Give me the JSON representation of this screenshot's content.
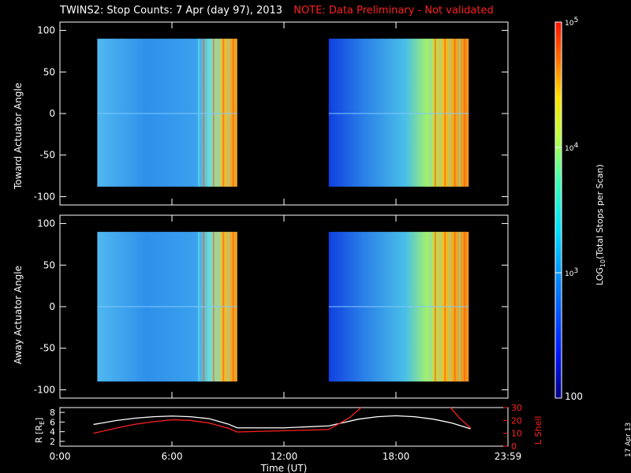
{
  "title": {
    "text": "TWINS2: Stop Counts:  7 Apr (day  97), 2013",
    "note": "NOTE: Data Preliminary - Not validated"
  },
  "stamp": "17 Apr 13",
  "colors": {
    "note": "#ff2020",
    "background": "#000000",
    "axes": "#ffffff",
    "lshell": "#ff2020",
    "radius": "#ffffff"
  },
  "chart_data": [
    {
      "type": "heatmap",
      "panel": "toward",
      "ylabel": "Toward Actuator Angle",
      "ylim": [
        -110,
        110
      ],
      "yticks": [
        100,
        50,
        0,
        -50,
        -100
      ],
      "xlim": [
        0,
        24
      ],
      "segments": [
        {
          "x": [
            2.0,
            9.5
          ],
          "y": [
            -88,
            90
          ]
        },
        {
          "x": [
            14.4,
            21.9
          ],
          "y": [
            -88,
            90
          ]
        }
      ]
    },
    {
      "type": "heatmap",
      "panel": "away",
      "ylabel": "Away Actuator Angle",
      "ylim": [
        -110,
        110
      ],
      "yticks": [
        100,
        50,
        0,
        -50,
        -100
      ],
      "xlim": [
        0,
        24
      ],
      "segments": [
        {
          "x": [
            2.0,
            9.5
          ],
          "y": [
            -90,
            90
          ]
        },
        {
          "x": [
            14.4,
            21.9
          ],
          "y": [
            -90,
            90
          ]
        }
      ]
    },
    {
      "type": "line",
      "panel": "orbit",
      "ylabel_left": "R [R",
      "ylabel_left_sub": "E",
      "ylabel_right": "L Shell",
      "ylim_left": [
        1,
        9
      ],
      "yticks_left": [
        2,
        4,
        6,
        8
      ],
      "ylim_right": [
        0,
        30
      ],
      "yticks_right": [
        0,
        10,
        20,
        30
      ],
      "xlabel": "Time (UT)",
      "xticks": [
        "0:00",
        "6:00",
        "12:00",
        "18:00",
        "23:59"
      ],
      "series": [
        {
          "axis": "left",
          "color": "#ffffff",
          "x": [
            1.8,
            3,
            4,
            5,
            6,
            7,
            8,
            9,
            9.5,
            12,
            14.4,
            16,
            17,
            18,
            19,
            20,
            21,
            22
          ],
          "y": [
            5.5,
            6.3,
            6.8,
            7.1,
            7.25,
            7.1,
            6.7,
            5.6,
            4.8,
            4.8,
            5.2,
            6.6,
            7.1,
            7.3,
            7.1,
            6.6,
            5.8,
            4.6
          ]
        },
        {
          "axis": "right",
          "color": "#ff2020",
          "x": [
            1.8,
            3,
            4,
            5,
            6,
            7,
            8,
            9,
            9.5,
            12,
            14.4,
            15.5,
            16.3,
            20.8,
            21.4,
            22
          ],
          "y": [
            10,
            14,
            17,
            19,
            20.5,
            20,
            18,
            14,
            11,
            12,
            13,
            22,
            32,
            32,
            22,
            14
          ]
        }
      ]
    },
    {
      "type": "colorbar",
      "label": "LOG",
      "label_sub": "10",
      "label_rest": "(Total Stops per Scan)",
      "range": [
        100,
        100000
      ],
      "ticks": [
        {
          "base": "10",
          "exp": "5",
          "value": 100000
        },
        {
          "base": "10",
          "exp": "4",
          "value": 10000
        },
        {
          "base": "10",
          "exp": "3",
          "value": 1000
        }
      ],
      "bottom_label": "100"
    }
  ]
}
